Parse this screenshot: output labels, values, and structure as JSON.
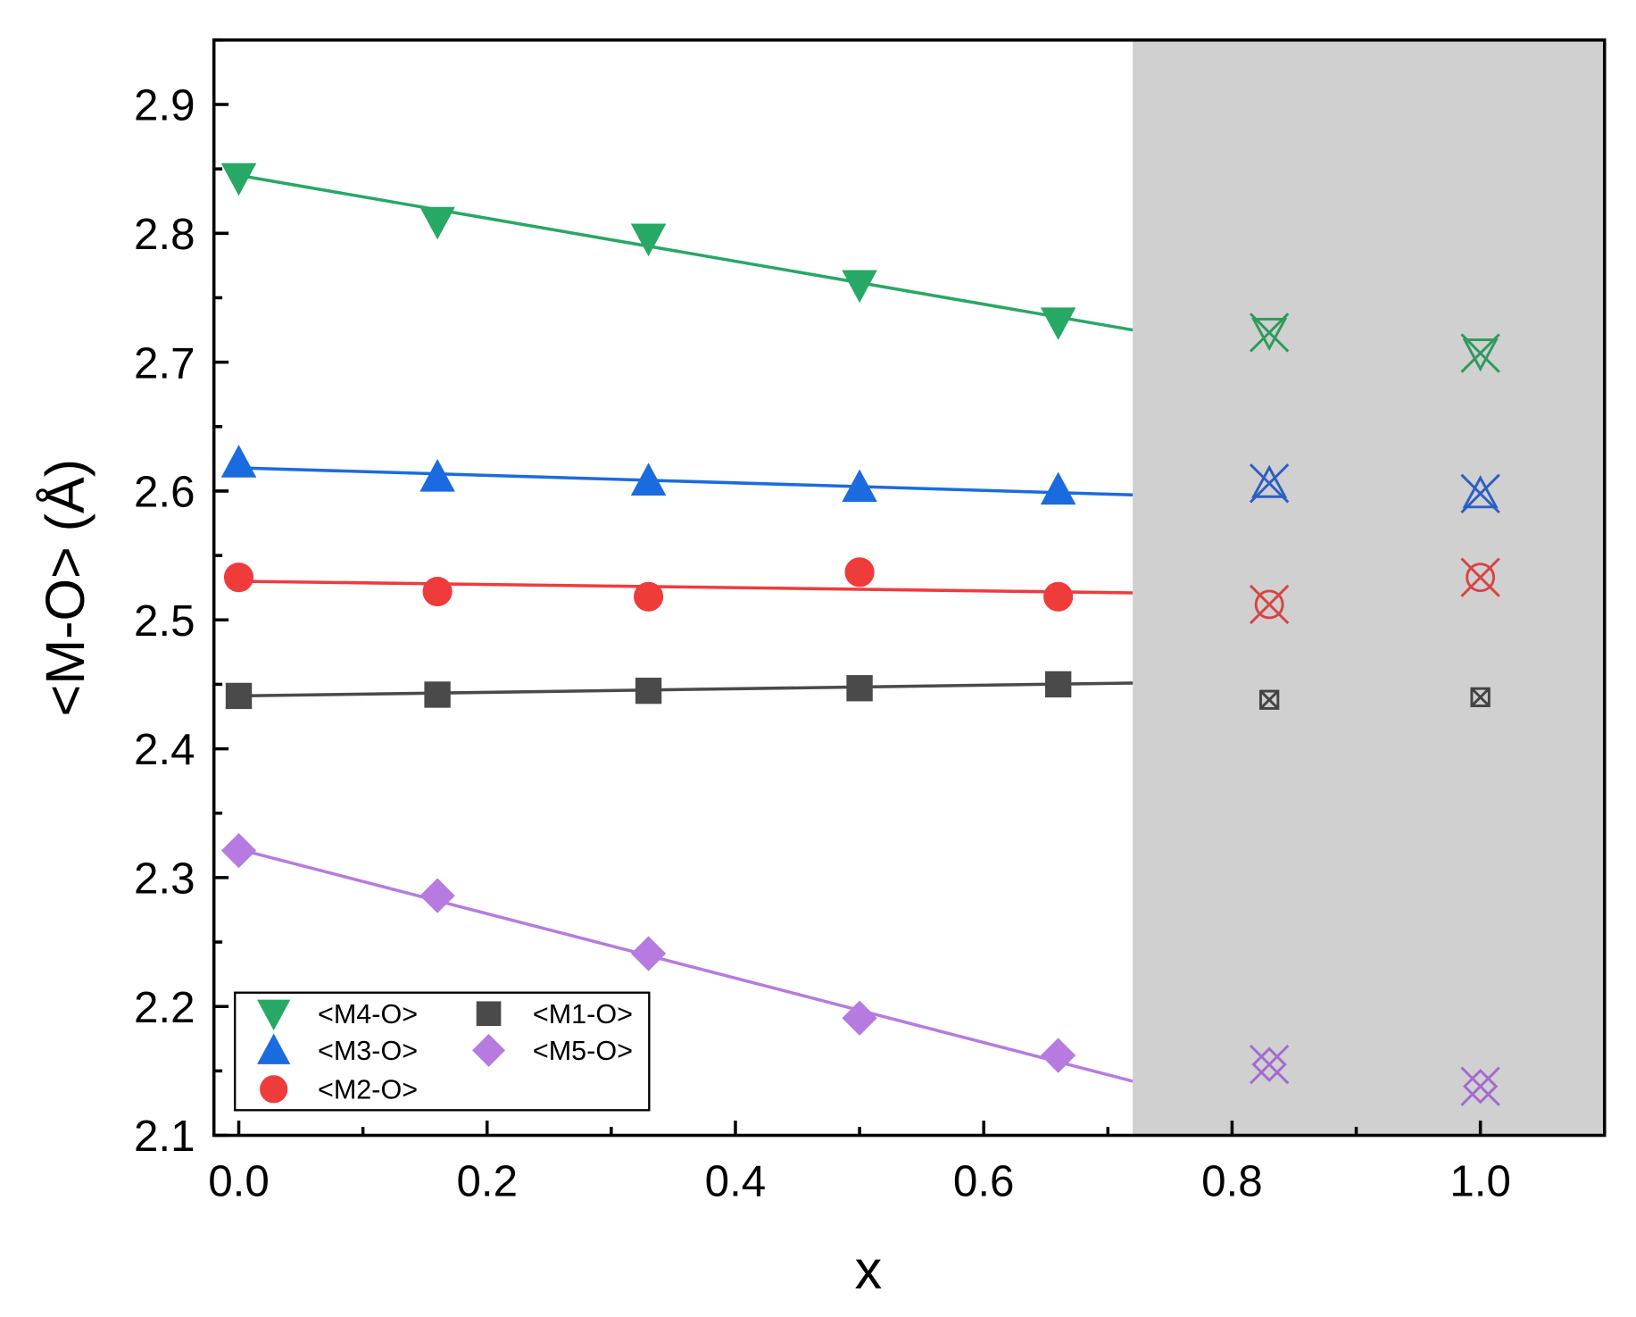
{
  "chart_data": {
    "type": "scatter",
    "xlabel": "x",
    "ylabel": "<M-O> (Å)",
    "xlim": [
      -0.02,
      1.1
    ],
    "ylim": [
      2.1,
      2.95
    ],
    "xticks": [
      "0.0",
      "0.2",
      "0.4",
      "0.6",
      "0.8",
      "1.0"
    ],
    "yticks": [
      "2.1",
      "2.2",
      "2.3",
      "2.4",
      "2.5",
      "2.6",
      "2.7",
      "2.8",
      "2.9"
    ],
    "grid": false,
    "legend_placement": "bottom-left",
    "shaded_region": {
      "x_from": 0.72,
      "x_to": 1.1,
      "color": "#d0d0d0"
    },
    "series": [
      {
        "name": "<M4-O>",
        "marker": "triangle-down",
        "color": "#27a864",
        "open_color": "#2e9a5c",
        "x": [
          0,
          0.16,
          0.33,
          0.5,
          0.66
        ],
        "y": [
          2.843,
          2.809,
          2.796,
          2.76,
          2.731
        ],
        "fit": {
          "x": [
            0,
            0.72
          ],
          "y": [
            2.845,
            2.725
          ]
        },
        "shaded_x": [
          0.83,
          1.0
        ],
        "shaded_y": [
          2.723,
          2.707
        ]
      },
      {
        "name": "<M3-O>",
        "marker": "triangle-up",
        "color": "#1a6be0",
        "open_color": "#2b5fc2",
        "x": [
          0,
          0.16,
          0.33,
          0.5,
          0.66
        ],
        "y": [
          2.622,
          2.611,
          2.608,
          2.603,
          2.601
        ],
        "fit": {
          "x": [
            0,
            0.72
          ],
          "y": [
            2.618,
            2.597
          ]
        },
        "shaded_x": [
          0.83,
          1.0
        ],
        "shaded_y": [
          2.606,
          2.598
        ]
      },
      {
        "name": "<M2-O>",
        "marker": "circle",
        "color": "#f03b3b",
        "open_color": "#d84444",
        "x": [
          0,
          0.16,
          0.33,
          0.5,
          0.66
        ],
        "y": [
          2.533,
          2.522,
          2.518,
          2.537,
          2.518
        ],
        "fit": {
          "x": [
            0,
            0.72
          ],
          "y": [
            2.53,
            2.521
          ]
        },
        "shaded_x": [
          0.83,
          1.0
        ],
        "shaded_y": [
          2.512,
          2.533
        ]
      },
      {
        "name": "<M1-O>",
        "marker": "square",
        "color": "#4a4a4a",
        "open_color": "#444444",
        "x": [
          0,
          0.16,
          0.33,
          0.5,
          0.66
        ],
        "y": [
          2.441,
          2.442,
          2.445,
          2.447,
          2.45
        ],
        "fit": {
          "x": [
            0,
            0.72
          ],
          "y": [
            2.441,
            2.451
          ]
        },
        "shaded_x": [
          0.83,
          1.0
        ],
        "shaded_y": [
          2.438,
          2.44
        ]
      },
      {
        "name": "<M5-O>",
        "marker": "diamond",
        "color": "#b67ae0",
        "open_color": "#a46ad2",
        "x": [
          0,
          0.16,
          0.33,
          0.5,
          0.66
        ],
        "y": [
          2.321,
          2.286,
          2.241,
          2.191,
          2.162
        ],
        "fit": {
          "x": [
            0,
            0.72
          ],
          "y": [
            2.322,
            2.142
          ]
        },
        "shaded_x": [
          0.83,
          1.0
        ],
        "shaded_y": [
          2.155,
          2.138
        ]
      }
    ],
    "legend_order": [
      0,
      3,
      1,
      4,
      2
    ]
  }
}
